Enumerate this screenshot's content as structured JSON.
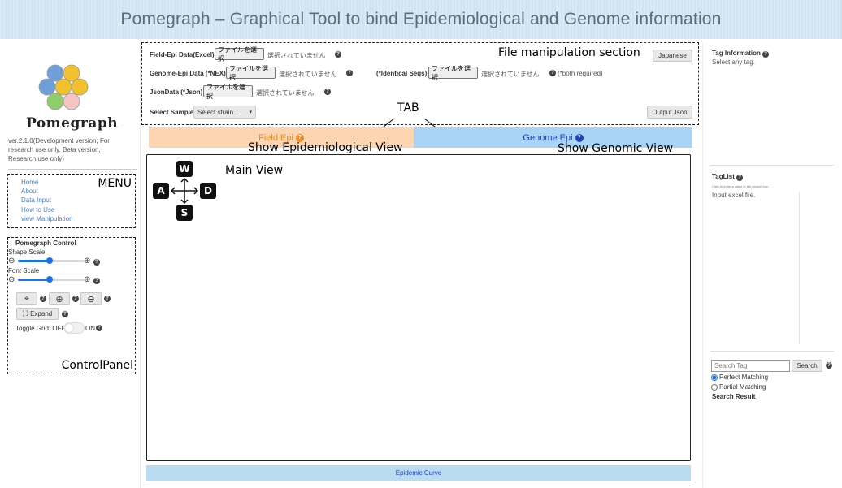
{
  "banner": {
    "title": "Pomegraph – Graphical Tool to bind Epidemiological and Genome information"
  },
  "logo": {
    "text": "Pomegraph"
  },
  "version": {
    "text": "ver.2.1.0(Development version; For research use only. Beta version, Research use only)"
  },
  "menu": {
    "annotation": "MENU",
    "items": [
      "Home",
      "About",
      "Data Input",
      "How to Use",
      "view Manipulation"
    ]
  },
  "control": {
    "annotation": "ControlPanel",
    "title": "Pomegraph Control",
    "shape_scale_label": "Shape Scale",
    "font_scale_label": "Font Scale",
    "shape_scale_value": 0.6,
    "font_scale_value": 0.6,
    "expand_label": "Expand",
    "toggle_grid_label": "Toggle Grid: OFF",
    "toggle_on_label": "ON"
  },
  "file_section": {
    "annotation": "File manipulation section",
    "field_epi_label": "Field-Epi Data(Excel):",
    "genome_epi_label": "Genome-Epi Data (*NEX):",
    "json_label": "JsonData (*Json):",
    "identical_label": "(*Identical Seqs):",
    "both_required": "(*both required)",
    "choose_file": "ファイルを選択",
    "no_file": "選択されていません",
    "japanese_button": "Japanese",
    "select_sample_label": "Select Sample",
    "select_sample_value": "Select strain...",
    "output_json_button": "Output Json"
  },
  "tabs": {
    "annotation": "TAB",
    "field_epi": "Field Epi",
    "genome_epi": "Genome Epi",
    "field_annotation": "Show Epidemiological View",
    "genome_annotation": "Show Genomic View"
  },
  "main_view": {
    "annotation": "Main View",
    "keys": {
      "up": "W",
      "left": "A",
      "right": "D",
      "down": "S"
    }
  },
  "epidemic_curve": {
    "label": "Epidemic Curve"
  },
  "right_panel": {
    "tag_info_title": "Tag Information",
    "tag_info_text": "Select any tag.",
    "taglist_title": "TagList",
    "taglist_hint": "Click to enter a value in the search box.",
    "taglist_text": "Input excel file.",
    "search_placeholder": "Search Tag",
    "search_button": "Search",
    "perfect_matching": "Perfect Matching",
    "partial_matching": "Partial Matching",
    "search_result": "Search Result"
  },
  "colors": {
    "field_tab_bg": "#fdd5b1",
    "field_tab_text": "#f08a24",
    "genome_tab_bg": "#a9d4f6",
    "genome_tab_text": "#2040c8",
    "epidemic_bar_bg": "#b9dcf3",
    "slider_accent": "#1a73e8"
  }
}
